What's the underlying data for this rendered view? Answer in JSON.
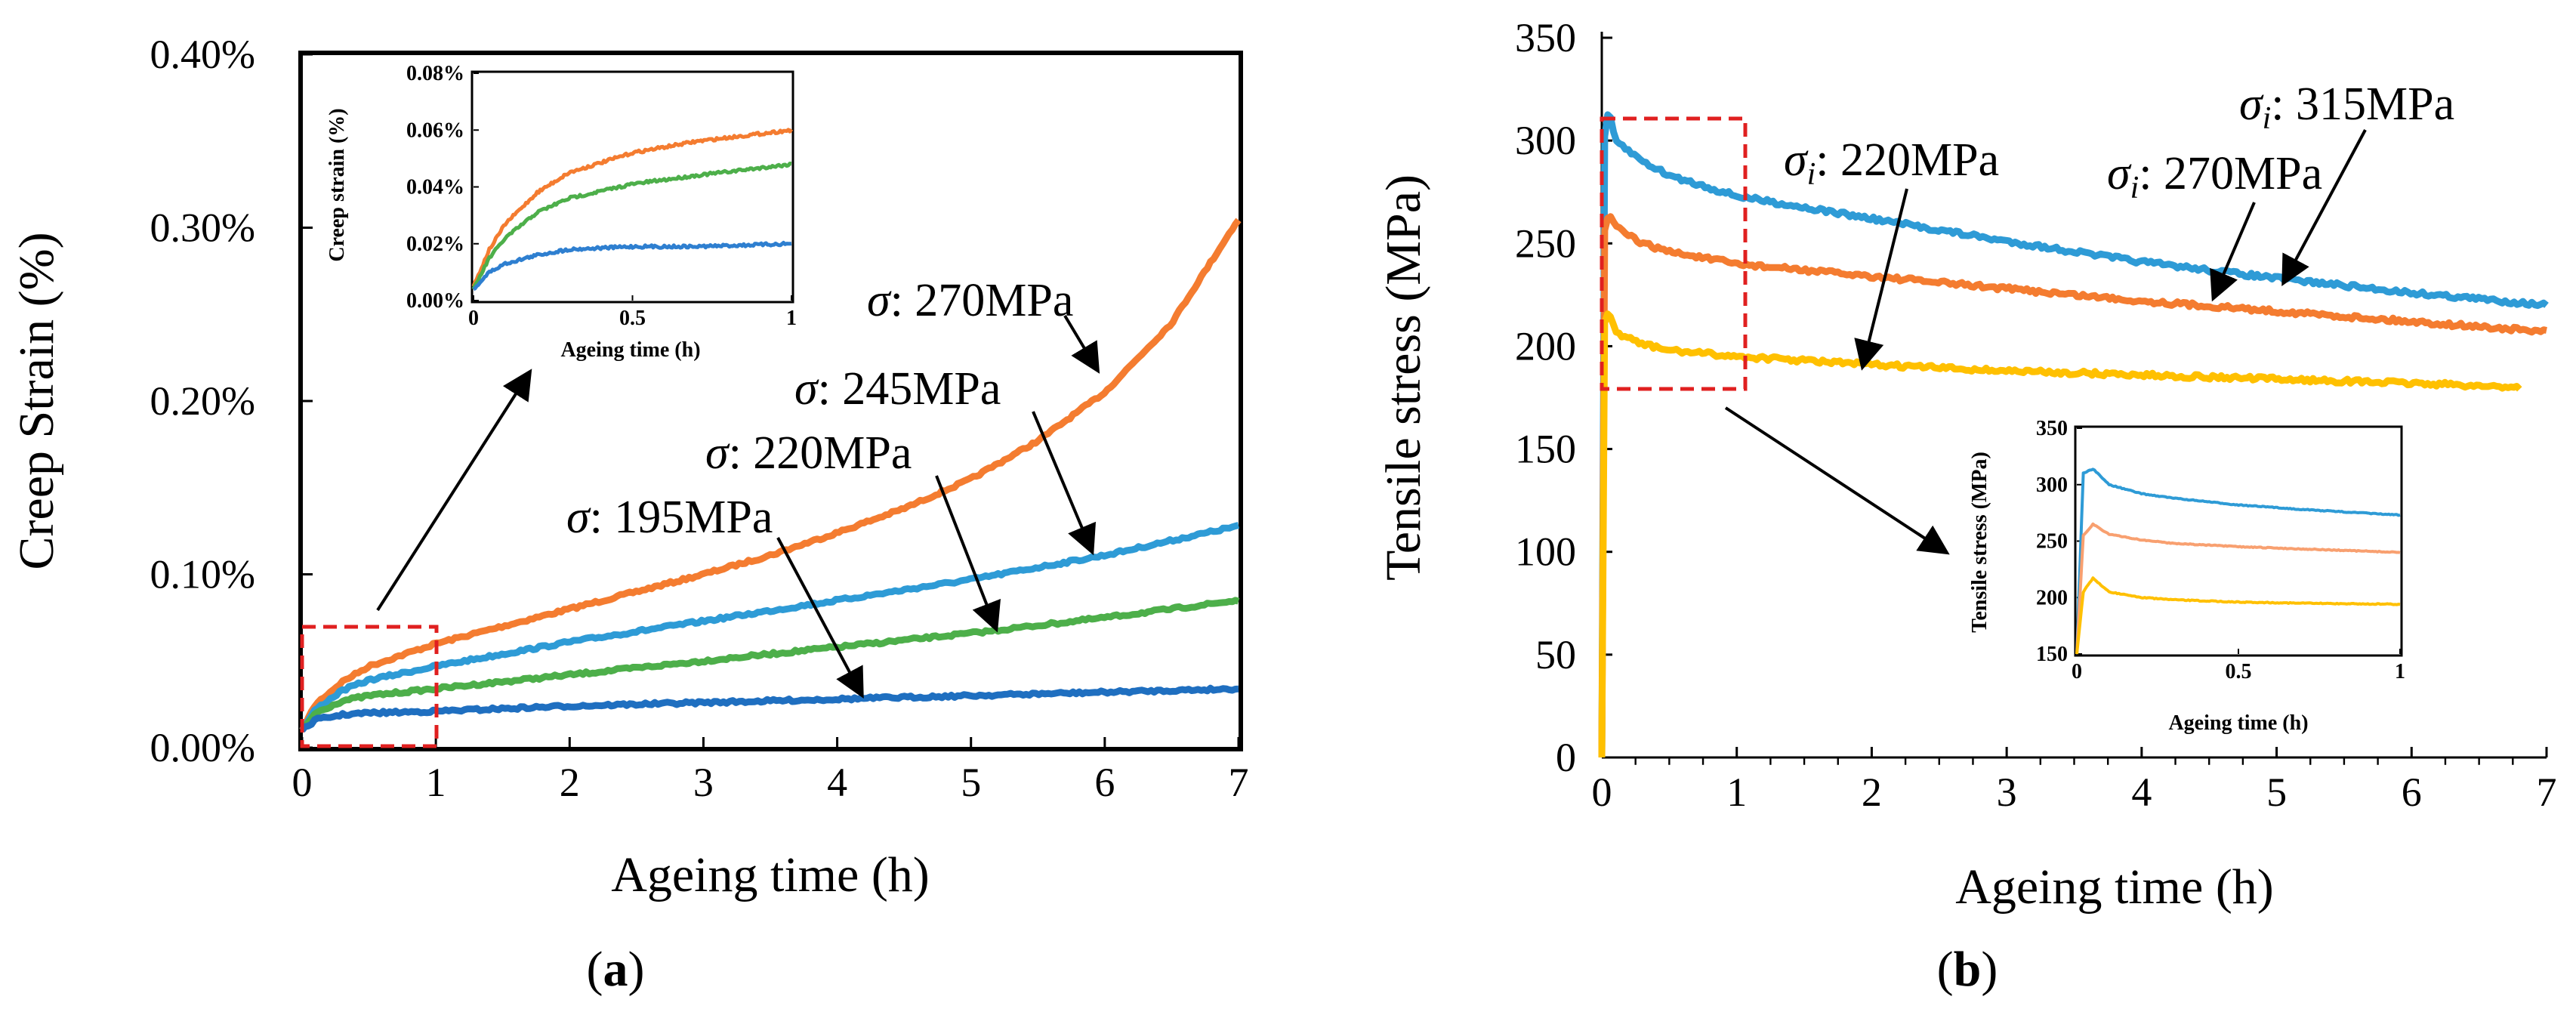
{
  "chart_data": [
    {
      "type": "line",
      "panel_label": "a",
      "xlabel": "Ageing time (h)",
      "ylabel": "Creep Strain (%)",
      "xlim": [
        0,
        7
      ],
      "ylim": [
        0,
        0.4
      ],
      "xticks": [
        "0",
        "1",
        "2",
        "3",
        "4",
        "5",
        "6",
        "7"
      ],
      "yticks": [
        "0.00%",
        "0.10%",
        "0.20%",
        "0.30%",
        "0.40%"
      ],
      "series": [
        {
          "name": "σ: 270MPa",
          "color": "#F47C30",
          "x": [
            0,
            0.1,
            0.3,
            0.5,
            1,
            1.5,
            2,
            2.5,
            3,
            3.5,
            4,
            4.5,
            5,
            5.5,
            6,
            6.5,
            7
          ],
          "y": [
            0.01,
            0.025,
            0.038,
            0.047,
            0.06,
            0.07,
            0.08,
            0.09,
            0.1,
            0.111,
            0.124,
            0.138,
            0.155,
            0.177,
            0.205,
            0.245,
            0.305
          ]
        },
        {
          "name": "σ: 245MPa",
          "color": "#2E9BD6",
          "x": [
            0,
            0.1,
            0.3,
            0.5,
            1,
            2,
            3,
            4,
            5,
            6,
            7
          ],
          "y": [
            0.01,
            0.022,
            0.033,
            0.039,
            0.047,
            0.061,
            0.073,
            0.085,
            0.097,
            0.111,
            0.128
          ]
        },
        {
          "name": "σ: 220MPa",
          "color": "#4DAF4A",
          "x": [
            0,
            0.1,
            0.3,
            0.5,
            1,
            2,
            3,
            4,
            5,
            6,
            7
          ],
          "y": [
            0.01,
            0.02,
            0.027,
            0.03,
            0.034,
            0.042,
            0.05,
            0.058,
            0.066,
            0.075,
            0.085
          ]
        },
        {
          "name": "σ: 195MPa",
          "color": "#1F6FC0",
          "x": [
            0,
            0.1,
            0.3,
            0.5,
            1,
            2,
            3,
            4,
            5,
            6,
            7
          ],
          "y": [
            0.01,
            0.016,
            0.019,
            0.02,
            0.021,
            0.024,
            0.026,
            0.028,
            0.03,
            0.032,
            0.034
          ]
        }
      ],
      "annotations": [
        {
          "label": "σ",
          "suffix": ": 270MPa"
        },
        {
          "label": "σ",
          "suffix": ": 245MPa"
        },
        {
          "label": "σ",
          "suffix": ": 220MPa"
        },
        {
          "label": "σ",
          "suffix": ": 195MPa"
        }
      ],
      "inset": {
        "xlabel": "Ageing time (h)",
        "ylabel": "Creep strain (%)",
        "xlim": [
          0,
          1
        ],
        "ylim": [
          0,
          0.08
        ],
        "xticks": [
          "0",
          "0.5",
          "1"
        ],
        "yticks": [
          "0.00%",
          "0.02%",
          "0.04%",
          "0.06%",
          "0.08%"
        ],
        "series": [
          {
            "color": "#F47C30",
            "x": [
              0,
              0.05,
              0.1,
              0.2,
              0.3,
              0.5,
              0.7,
              1
            ],
            "y": [
              0.005,
              0.018,
              0.027,
              0.038,
              0.045,
              0.052,
              0.056,
              0.06
            ]
          },
          {
            "color": "#4DAF4A",
            "x": [
              0,
              0.05,
              0.1,
              0.2,
              0.3,
              0.5,
              0.7,
              1
            ],
            "y": [
              0.004,
              0.015,
              0.022,
              0.031,
              0.036,
              0.041,
              0.044,
              0.048
            ]
          },
          {
            "color": "#2E7FD0",
            "x": [
              0,
              0.05,
              0.1,
              0.2,
              0.3,
              0.5,
              0.7,
              1
            ],
            "y": [
              0.004,
              0.01,
              0.013,
              0.016,
              0.018,
              0.019,
              0.019,
              0.02
            ]
          }
        ]
      }
    },
    {
      "type": "line",
      "panel_label": "b",
      "xlabel": "Ageing time (h)",
      "ylabel": "Tensile stress (MPa)",
      "xlim": [
        0,
        7
      ],
      "ylim": [
        0,
        350
      ],
      "xticks": [
        "0",
        "1",
        "2",
        "3",
        "4",
        "5",
        "6",
        "7"
      ],
      "yticks": [
        "0",
        "50",
        "100",
        "150",
        "200",
        "250",
        "300",
        "350"
      ],
      "series": [
        {
          "name": "σi: 315MPa",
          "color": "#2E9BD6",
          "x": [
            0,
            0.02,
            0.05,
            0.1,
            0.3,
            0.5,
            1,
            2,
            3,
            4,
            5,
            6,
            7
          ],
          "y": [
            0,
            300,
            315,
            300,
            290,
            283,
            273,
            262,
            251,
            241,
            233,
            226,
            220
          ]
        },
        {
          "name": "σi: 270MPa",
          "color": "#F47C30",
          "x": [
            0,
            0.02,
            0.05,
            0.1,
            0.3,
            0.5,
            1,
            2,
            3,
            4,
            5,
            6,
            7
          ],
          "y": [
            0,
            255,
            265,
            258,
            250,
            246,
            240,
            234,
            228,
            222,
            217,
            212,
            207
          ]
        },
        {
          "name": "σi: 220MPa",
          "color": "#FFC000",
          "x": [
            0,
            0.02,
            0.05,
            0.1,
            0.3,
            0.5,
            1,
            2,
            3,
            4,
            5,
            6,
            6.8
          ],
          "y": [
            0,
            210,
            217,
            207,
            201,
            198,
            195,
            191,
            188,
            186,
            184,
            182,
            180
          ]
        }
      ],
      "annotations": [
        {
          "label": "σ",
          "sub": "i",
          "suffix": ": 315MPa"
        },
        {
          "label": "σ",
          "sub": "i",
          "suffix": ": 270MPa"
        },
        {
          "label": "σ",
          "sub": "i",
          "suffix": ": 220MPa"
        }
      ],
      "inset": {
        "xlabel": "Ageing time (h)",
        "ylabel": "Tensile stress (MPa)",
        "xlim": [
          0,
          1
        ],
        "ylim": [
          150,
          350
        ],
        "xticks": [
          "0",
          "0.5",
          "1"
        ],
        "yticks": [
          "150",
          "200",
          "250",
          "300",
          "350"
        ],
        "series": [
          {
            "color": "#2E9BD6",
            "x": [
              0,
              0.02,
              0.05,
              0.1,
              0.2,
              0.3,
              0.5,
              0.7,
              1
            ],
            "y": [
              150,
              310,
              314,
              300,
              292,
              288,
              282,
              278,
              273
            ]
          },
          {
            "color": "#F8A070",
            "x": [
              0,
              0.02,
              0.05,
              0.1,
              0.2,
              0.3,
              0.5,
              0.7,
              1
            ],
            "y": [
              150,
              255,
              265,
              256,
              251,
              248,
              245,
              243,
              240
            ]
          },
          {
            "color": "#FFC000",
            "x": [
              0,
              0.02,
              0.05,
              0.1,
              0.2,
              0.3,
              0.5,
              0.7,
              1
            ],
            "y": [
              150,
              205,
              217,
              205,
              200,
              198,
              196,
              195,
              194
            ]
          }
        ]
      }
    }
  ]
}
